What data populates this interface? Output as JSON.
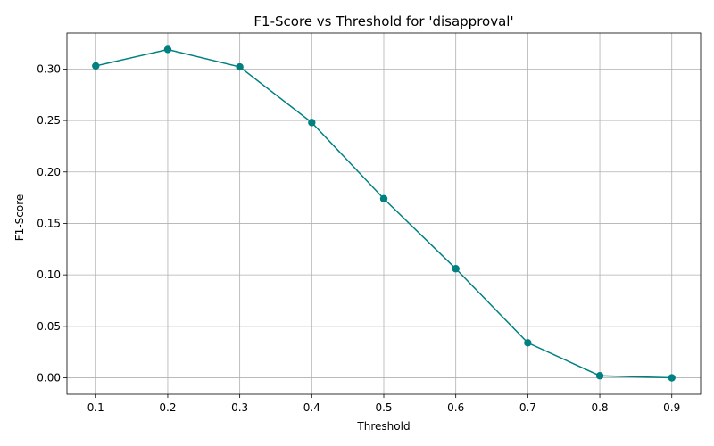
{
  "chart_data": {
    "type": "line",
    "title": "F1-Score vs Threshold for 'disapproval'",
    "xlabel": "Threshold",
    "ylabel": "F1-Score",
    "x": [
      0.1,
      0.2,
      0.3,
      0.4,
      0.5,
      0.6,
      0.7,
      0.8,
      0.9
    ],
    "series": [
      {
        "values": [
          0.303,
          0.319,
          0.302,
          0.248,
          0.174,
          0.106,
          0.034,
          0.002,
          0.0
        ],
        "color": "#008080",
        "marker": "circle"
      }
    ],
    "xlim": [
      0.06,
      0.94
    ],
    "ylim": [
      -0.016,
      0.335
    ],
    "xticks": [
      "0.1",
      "0.2",
      "0.3",
      "0.4",
      "0.5",
      "0.6",
      "0.7",
      "0.8",
      "0.9"
    ],
    "yticks": [
      "0.00",
      "0.05",
      "0.10",
      "0.15",
      "0.20",
      "0.25",
      "0.30"
    ],
    "grid": true,
    "legend": "none"
  }
}
